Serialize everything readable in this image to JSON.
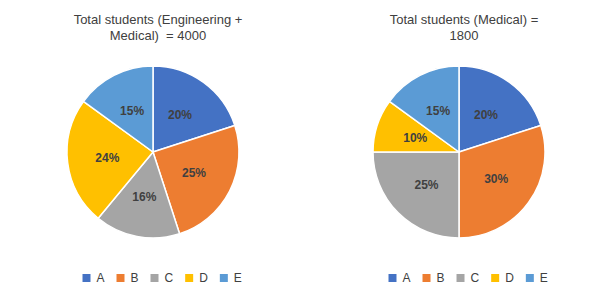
{
  "chart_data": [
    {
      "type": "pie",
      "title": "Total students (Engineering +\nMedical)  = 4000",
      "categories": [
        "A",
        "B",
        "C",
        "D",
        "E"
      ],
      "values": [
        20,
        25,
        16,
        24,
        15
      ],
      "value_labels": [
        "20%",
        "25%",
        "16%",
        "24%",
        "15%"
      ],
      "colors": [
        "#4472C4",
        "#ED7D31",
        "#A5A5A5",
        "#FFC000",
        "#5B9BD5"
      ],
      "data_labels": true,
      "legend": "bottom"
    },
    {
      "type": "pie",
      "title": "Total students (Medical) =\n1800",
      "categories": [
        "A",
        "B",
        "C",
        "D",
        "E"
      ],
      "values": [
        20,
        30,
        25,
        10,
        15
      ],
      "value_labels": [
        "20%",
        "30%",
        "25%",
        "10%",
        "15%"
      ],
      "colors": [
        "#4472C4",
        "#ED7D31",
        "#A5A5A5",
        "#FFC000",
        "#5B9BD5"
      ],
      "data_labels": true,
      "legend": "bottom"
    }
  ]
}
